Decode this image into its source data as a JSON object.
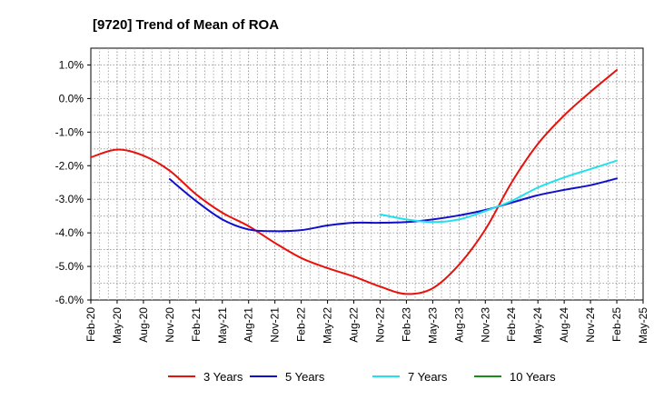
{
  "chart_data": {
    "type": "line",
    "title": "[9720]  Trend of Mean of ROA",
    "xlabel": "",
    "ylabel": "",
    "ylim": [
      -6.0,
      1.5
    ],
    "y_ticks": [
      1.0,
      0.0,
      -1.0,
      -2.0,
      -3.0,
      -4.0,
      -5.0,
      -6.0
    ],
    "y_tick_labels": [
      "1.0%",
      "0.0%",
      "-1.0%",
      "-2.0%",
      "-3.0%",
      "-4.0%",
      "-5.0%",
      "-6.0%"
    ],
    "x_tick_labels": [
      "Feb-20",
      "May-20",
      "Aug-20",
      "Nov-20",
      "Feb-21",
      "May-21",
      "Aug-21",
      "Nov-21",
      "Feb-22",
      "May-22",
      "Aug-22",
      "Nov-22",
      "Feb-23",
      "May-23",
      "Aug-23",
      "Nov-23",
      "Feb-24",
      "May-24",
      "Aug-24",
      "Nov-24",
      "Feb-25",
      "May-25"
    ],
    "grid": true,
    "legend_position": "bottom",
    "series": [
      {
        "name": "3 Years",
        "color": "#e8120c",
        "x_index": [
          0,
          1,
          2,
          3,
          4,
          5,
          6,
          7,
          8,
          9,
          10,
          11,
          12,
          13,
          14,
          15,
          16,
          17,
          18,
          19,
          20
        ],
        "values": [
          -1.75,
          -1.52,
          -1.7,
          -2.15,
          -2.85,
          -3.4,
          -3.8,
          -4.3,
          -4.75,
          -5.05,
          -5.3,
          -5.6,
          -5.82,
          -5.65,
          -4.95,
          -3.9,
          -2.5,
          -1.35,
          -0.5,
          0.2,
          0.85
        ]
      },
      {
        "name": "5 Years",
        "color": "#1010cc",
        "x_index": [
          3,
          4,
          5,
          6,
          7,
          8,
          9,
          10,
          11,
          12,
          13,
          14,
          15,
          16,
          17,
          18,
          19,
          20
        ],
        "values": [
          -2.4,
          -3.05,
          -3.6,
          -3.9,
          -3.95,
          -3.92,
          -3.78,
          -3.7,
          -3.7,
          -3.68,
          -3.6,
          -3.48,
          -3.32,
          -3.1,
          -2.88,
          -2.72,
          -2.58,
          -2.38
        ]
      },
      {
        "name": "7 Years",
        "color": "#22e0ee",
        "x_index": [
          11,
          12,
          13,
          14,
          15,
          16,
          17,
          18,
          19,
          20
        ],
        "values": [
          -3.45,
          -3.6,
          -3.68,
          -3.6,
          -3.35,
          -3.05,
          -2.65,
          -2.35,
          -2.1,
          -1.85
        ]
      },
      {
        "name": "10 Years",
        "color": "#1a8c1a",
        "x_index": [],
        "values": []
      }
    ]
  }
}
